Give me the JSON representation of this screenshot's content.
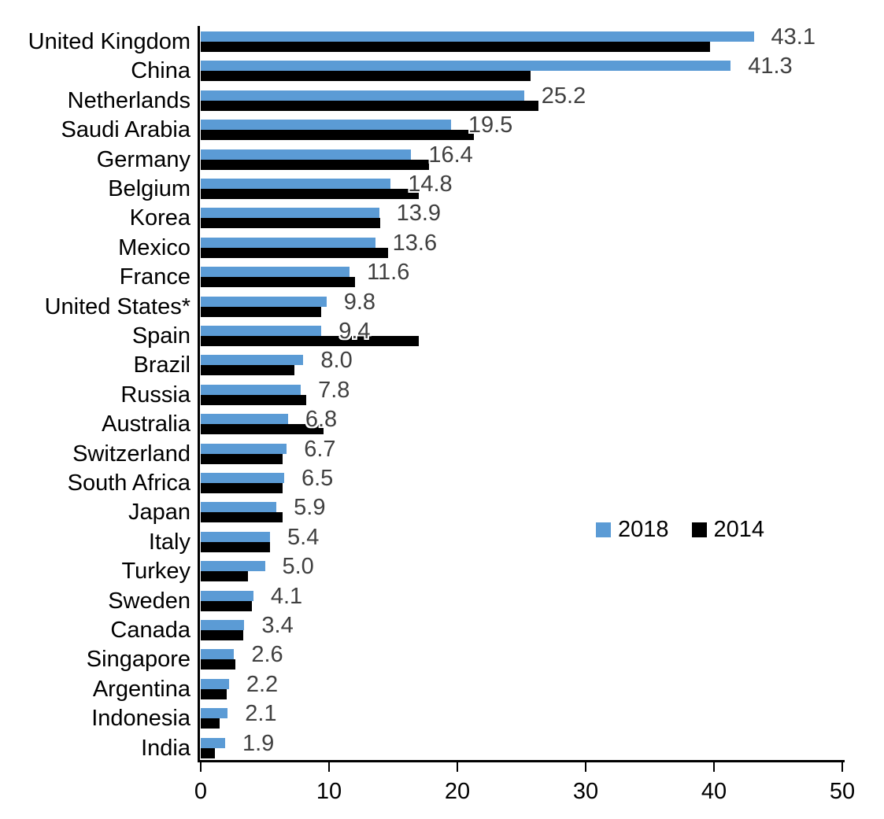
{
  "chart_data": {
    "type": "bar",
    "orientation": "horizontal",
    "title": "",
    "categories": [
      "United Kingdom",
      "China",
      "Netherlands",
      "Saudi Arabia",
      "Germany",
      "Belgium",
      "Korea",
      "Mexico",
      "France",
      "United States*",
      "Spain",
      "Brazil",
      "Russia",
      "Australia",
      "Switzerland",
      "South Africa",
      "Japan",
      "Italy",
      "Turkey",
      "Sweden",
      "Canada",
      "Singapore",
      "Argentina",
      "Indonesia",
      "India"
    ],
    "series": [
      {
        "name": "2018",
        "color": "#5B9BD5",
        "data_labels_shown": true,
        "values": [
          43.1,
          41.3,
          25.2,
          19.5,
          16.4,
          14.8,
          13.9,
          13.6,
          11.6,
          9.8,
          9.4,
          8.0,
          7.8,
          6.8,
          6.7,
          6.5,
          5.9,
          5.4,
          5.0,
          4.1,
          3.4,
          2.6,
          2.2,
          2.1,
          1.9
        ]
      },
      {
        "name": "2014",
        "color": "#000000",
        "data_labels_shown": false,
        "note": "bars are unlabeled in the image; values estimated from bar lengths",
        "values": [
          39.7,
          25.7,
          26.3,
          21.3,
          17.8,
          17.0,
          14.0,
          14.6,
          12.0,
          9.4,
          17.0,
          7.3,
          8.2,
          9.6,
          6.4,
          6.4,
          6.4,
          5.4,
          3.7,
          4.0,
          3.3,
          2.7,
          2.0,
          1.5,
          1.1
        ]
      }
    ],
    "value_label_format": "one_decimal",
    "xlim": [
      0,
      50
    ],
    "x_ticks": [
      0,
      10,
      20,
      30,
      40,
      50
    ],
    "xlabel": "",
    "ylabel": "",
    "grid": false,
    "legend_position": "center-right"
  },
  "colors": {
    "series_2018": "#5B9BD5",
    "series_2014": "#000000",
    "value_label": "#404040",
    "axis": "#000000",
    "background": "#ffffff"
  }
}
